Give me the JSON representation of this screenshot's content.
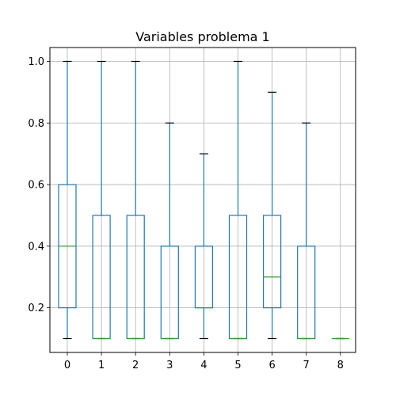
{
  "chart_data": {
    "type": "box",
    "title": "Variables problema 1",
    "xlabel": "",
    "ylabel": "",
    "categories": [
      "0",
      "1",
      "2",
      "3",
      "4",
      "5",
      "6",
      "7",
      "8"
    ],
    "boxes": [
      {
        "category": "0",
        "whisker_low": 0.1,
        "q1": 0.2,
        "median": 0.4,
        "q3": 0.6,
        "whisker_high": 1.0
      },
      {
        "category": "1",
        "whisker_low": 0.1,
        "q1": 0.1,
        "median": 0.1,
        "q3": 0.5,
        "whisker_high": 1.0
      },
      {
        "category": "2",
        "whisker_low": 0.1,
        "q1": 0.1,
        "median": 0.1,
        "q3": 0.5,
        "whisker_high": 1.0
      },
      {
        "category": "3",
        "whisker_low": 0.1,
        "q1": 0.1,
        "median": 0.1,
        "q3": 0.4,
        "whisker_high": 0.8
      },
      {
        "category": "4",
        "whisker_low": 0.1,
        "q1": 0.2,
        "median": 0.2,
        "q3": 0.4,
        "whisker_high": 0.7
      },
      {
        "category": "5",
        "whisker_low": 0.1,
        "q1": 0.1,
        "median": 0.1,
        "q3": 0.5,
        "whisker_high": 1.0
      },
      {
        "category": "6",
        "whisker_low": 0.1,
        "q1": 0.2,
        "median": 0.3,
        "q3": 0.5,
        "whisker_high": 0.9
      },
      {
        "category": "7",
        "whisker_low": 0.1,
        "q1": 0.1,
        "median": 0.1,
        "q3": 0.4,
        "whisker_high": 0.8
      },
      {
        "category": "8",
        "whisker_low": 0.1,
        "q1": 0.1,
        "median": 0.1,
        "q3": 0.1,
        "whisker_high": 0.1
      }
    ],
    "ylim": [
      0.055,
      1.045
    ],
    "yticks": [
      0.2,
      0.4,
      0.6,
      0.8,
      1.0
    ],
    "ytick_labels": [
      "0.2",
      "0.4",
      "0.6",
      "0.8",
      "1.0"
    ],
    "grid": true,
    "colors": {
      "box": "#1f77b4",
      "median": "#2ca02c",
      "cap": "#000000",
      "grid": "#b0b0b0"
    }
  }
}
